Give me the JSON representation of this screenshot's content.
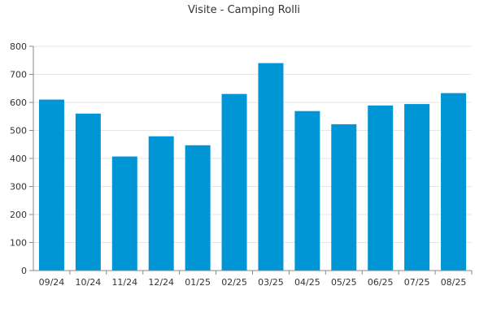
{
  "chart_data": {
    "type": "bar",
    "title": "Visite - Camping Rolli",
    "xlabel": "",
    "ylabel": "",
    "categories": [
      "09/24",
      "10/24",
      "11/24",
      "12/24",
      "01/25",
      "02/25",
      "03/25",
      "04/25",
      "05/25",
      "06/25",
      "07/25",
      "08/25"
    ],
    "values": [
      610,
      560,
      407,
      479,
      447,
      630,
      740,
      569,
      522,
      589,
      594,
      633
    ],
    "ylim": [
      0,
      800
    ],
    "yticks": [
      0,
      100,
      200,
      300,
      400,
      500,
      600,
      700,
      800
    ],
    "grid": true,
    "legend": "none",
    "bar_color": "#0096d6"
  }
}
